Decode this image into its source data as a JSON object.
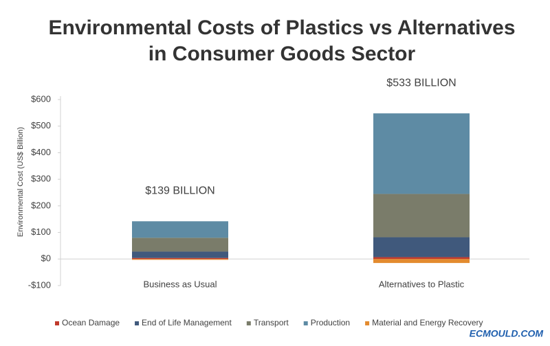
{
  "chart_data": {
    "type": "stacked_bar",
    "title": [
      "Environmental Costs of Plastics vs Alternatives",
      "in Consumer Goods Sector"
    ],
    "y_label": "Environmental Cost (US$ Billion)",
    "categories": [
      "Business as Usual",
      "Alternatives to Plastic"
    ],
    "series": [
      {
        "name": "Ocean Damage",
        "color": "#c0392b",
        "values": [
          4,
          7
        ]
      },
      {
        "name": "End of Life Management",
        "color": "#40597c",
        "values": [
          24,
          75
        ]
      },
      {
        "name": "Transport",
        "color": "#7a7c6a",
        "values": [
          52,
          163
        ]
      },
      {
        "name": "Production",
        "color": "#5e8ba4",
        "values": [
          62,
          303
        ]
      },
      {
        "name": "Material and Energy Recovery",
        "color": "#e38b2f",
        "values": [
          -3,
          -15
        ]
      }
    ],
    "annotations": [
      "$139 BILLION",
      "$533 BILLION"
    ],
    "ylim": [
      -100,
      600
    ],
    "yticks": [
      {
        "value": -100,
        "label": "-$100"
      },
      {
        "value": 0,
        "label": "$0"
      },
      {
        "value": 100,
        "label": "$100"
      },
      {
        "value": 200,
        "label": "$200"
      },
      {
        "value": 300,
        "label": "$300"
      },
      {
        "value": 400,
        "label": "$400"
      },
      {
        "value": 500,
        "label": "$500"
      },
      {
        "value": 600,
        "label": "$600"
      }
    ],
    "grid": false,
    "legend": "bottom",
    "watermark": "ECMOULD.COM"
  }
}
